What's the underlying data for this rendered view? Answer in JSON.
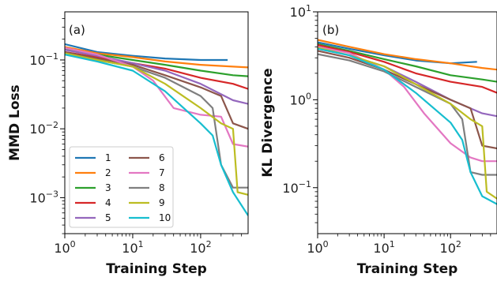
{
  "chart_data": [
    {
      "type": "line",
      "panel_label": "(a)",
      "xlabel": "Training Step",
      "ylabel": "MMD Loss",
      "xscale": "log",
      "yscale": "log",
      "xlim": [
        1,
        500
      ],
      "ylim": [
        0.0003,
        0.5
      ],
      "x_ticks": [
        {
          "value": 1,
          "base": "10",
          "exp": "0"
        },
        {
          "value": 10,
          "base": "10",
          "exp": "1"
        },
        {
          "value": 100,
          "base": "10",
          "exp": "2"
        }
      ],
      "y_ticks": [
        {
          "value": 0.1,
          "base": "10",
          "exp": "−1"
        },
        {
          "value": 0.01,
          "base": "10",
          "exp": "−2"
        },
        {
          "value": 0.001,
          "base": "10",
          "exp": "−3"
        }
      ],
      "grid": false,
      "legend": {
        "placement": "lower-left",
        "columns": 2
      },
      "series": [
        {
          "name": "1",
          "color": "#1f77b4",
          "x": [
            1,
            3,
            10,
            30,
            100,
            250
          ],
          "y": [
            0.17,
            0.13,
            0.115,
            0.105,
            0.1,
            0.1
          ]
        },
        {
          "name": "2",
          "color": "#ff7f0e",
          "x": [
            1,
            3,
            10,
            30,
            100,
            300,
            500
          ],
          "y": [
            0.155,
            0.125,
            0.11,
            0.095,
            0.085,
            0.08,
            0.078
          ]
        },
        {
          "name": "3",
          "color": "#2ca02c",
          "x": [
            1,
            3,
            10,
            30,
            100,
            300,
            500
          ],
          "y": [
            0.145,
            0.12,
            0.1,
            0.085,
            0.07,
            0.06,
            0.058
          ]
        },
        {
          "name": "4",
          "color": "#d62728",
          "x": [
            1,
            3,
            10,
            30,
            100,
            300,
            500
          ],
          "y": [
            0.13,
            0.11,
            0.09,
            0.075,
            0.055,
            0.045,
            0.038
          ]
        },
        {
          "name": "5",
          "color": "#9467bd",
          "x": [
            1,
            3,
            10,
            30,
            100,
            300,
            500
          ],
          "y": [
            0.14,
            0.115,
            0.09,
            0.07,
            0.045,
            0.026,
            0.023
          ]
        },
        {
          "name": "6",
          "color": "#8c564b",
          "x": [
            1,
            3,
            10,
            30,
            100,
            200,
            300,
            500
          ],
          "y": [
            0.13,
            0.105,
            0.085,
            0.06,
            0.04,
            0.03,
            0.012,
            0.01
          ]
        },
        {
          "name": "7",
          "color": "#e377c2",
          "x": [
            1,
            3,
            10,
            20,
            40,
            100,
            200,
            300,
            500
          ],
          "y": [
            0.15,
            0.12,
            0.08,
            0.05,
            0.02,
            0.016,
            0.015,
            0.006,
            0.0055
          ]
        },
        {
          "name": "8",
          "color": "#7f7f7f",
          "x": [
            1,
            3,
            10,
            30,
            100,
            150,
            200,
            300,
            500
          ],
          "y": [
            0.12,
            0.1,
            0.08,
            0.055,
            0.03,
            0.02,
            0.003,
            0.0014,
            0.0014
          ]
        },
        {
          "name": "9",
          "color": "#bcbd22",
          "x": [
            1,
            3,
            10,
            30,
            100,
            200,
            300,
            350,
            500
          ],
          "y": [
            0.125,
            0.1,
            0.08,
            0.045,
            0.02,
            0.012,
            0.01,
            0.0012,
            0.0011
          ]
        },
        {
          "name": "10",
          "color": "#17becf",
          "x": [
            1,
            3,
            10,
            30,
            100,
            150,
            200,
            300,
            500
          ],
          "y": [
            0.12,
            0.095,
            0.07,
            0.035,
            0.012,
            0.008,
            0.003,
            0.0012,
            0.00055
          ]
        }
      ]
    },
    {
      "type": "line",
      "panel_label": "(b)",
      "xlabel": "Training Step",
      "ylabel": "KL Divergence",
      "xscale": "log",
      "yscale": "log",
      "xlim": [
        1,
        500
      ],
      "ylim": [
        0.03,
        10
      ],
      "x_ticks": [
        {
          "value": 1,
          "base": "10",
          "exp": "0"
        },
        {
          "value": 10,
          "base": "10",
          "exp": "1"
        },
        {
          "value": 100,
          "base": "10",
          "exp": "2"
        }
      ],
      "y_ticks": [
        {
          "value": 10,
          "base": "10",
          "exp": "1"
        },
        {
          "value": 1,
          "base": "10",
          "exp": "0"
        },
        {
          "value": 0.1,
          "base": "10",
          "exp": "−1"
        }
      ],
      "grid": false,
      "series": [
        {
          "name": "1",
          "color": "#1f77b4",
          "x": [
            1,
            3,
            10,
            30,
            100,
            250
          ],
          "y": [
            4.5,
            3.8,
            3.2,
            2.8,
            2.6,
            2.7
          ]
        },
        {
          "name": "2",
          "color": "#ff7f0e",
          "x": [
            1,
            3,
            10,
            30,
            100,
            300,
            500
          ],
          "y": [
            4.8,
            4.0,
            3.3,
            2.9,
            2.6,
            2.3,
            2.2
          ]
        },
        {
          "name": "3",
          "color": "#2ca02c",
          "x": [
            1,
            3,
            10,
            30,
            100,
            300,
            500
          ],
          "y": [
            4.3,
            3.6,
            2.9,
            2.4,
            1.9,
            1.7,
            1.6
          ]
        },
        {
          "name": "4",
          "color": "#d62728",
          "x": [
            1,
            3,
            10,
            30,
            100,
            300,
            500
          ],
          "y": [
            4.2,
            3.5,
            2.7,
            2.0,
            1.6,
            1.4,
            1.2
          ]
        },
        {
          "name": "5",
          "color": "#9467bd",
          "x": [
            1,
            3,
            10,
            30,
            100,
            300,
            500
          ],
          "y": [
            3.8,
            3.2,
            2.4,
            1.6,
            1.0,
            0.7,
            0.65
          ]
        },
        {
          "name": "6",
          "color": "#8c564b",
          "x": [
            1,
            3,
            10,
            30,
            100,
            200,
            300,
            500
          ],
          "y": [
            3.6,
            3.0,
            2.2,
            1.5,
            1.0,
            0.8,
            0.3,
            0.28
          ]
        },
        {
          "name": "7",
          "color": "#e377c2",
          "x": [
            1,
            3,
            10,
            20,
            40,
            100,
            200,
            300,
            500
          ],
          "y": [
            4.0,
            3.4,
            2.2,
            1.4,
            0.7,
            0.32,
            0.22,
            0.2,
            0.2
          ]
        },
        {
          "name": "8",
          "color": "#7f7f7f",
          "x": [
            1,
            3,
            10,
            30,
            100,
            150,
            200,
            300,
            500
          ],
          "y": [
            3.3,
            2.8,
            2.1,
            1.4,
            0.9,
            0.6,
            0.15,
            0.14,
            0.14
          ]
        },
        {
          "name": "9",
          "color": "#bcbd22",
          "x": [
            1,
            3,
            10,
            30,
            100,
            200,
            300,
            350,
            500
          ],
          "y": [
            3.9,
            3.2,
            2.4,
            1.5,
            0.9,
            0.6,
            0.5,
            0.09,
            0.075
          ]
        },
        {
          "name": "10",
          "color": "#17becf",
          "x": [
            1,
            3,
            10,
            30,
            100,
            150,
            200,
            300,
            500
          ],
          "y": [
            3.8,
            3.2,
            2.2,
            1.2,
            0.55,
            0.35,
            0.15,
            0.08,
            0.065
          ]
        }
      ]
    }
  ]
}
